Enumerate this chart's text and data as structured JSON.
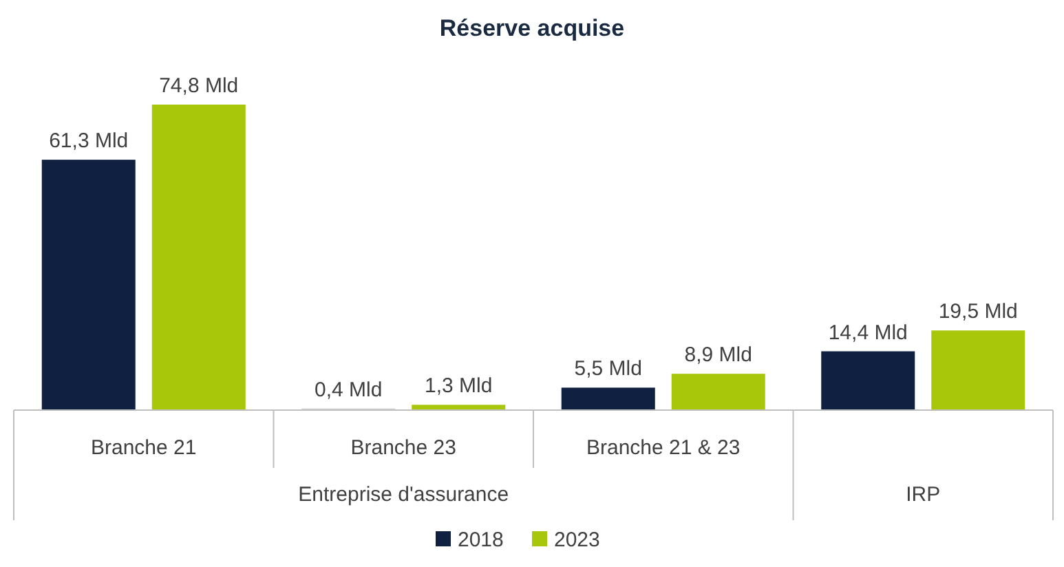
{
  "chart_data": {
    "type": "bar",
    "title": "Réserve acquise",
    "categories": [
      "Branche 21",
      "Branche 23",
      "Branche 21 & 23",
      null
    ],
    "series": [
      {
        "name": "2018",
        "color": "#0f2040",
        "colors": [
          "#0f2040",
          "#d3d3d3",
          "#0f2040",
          "#0f2040"
        ],
        "values": [
          61.3,
          0.4,
          5.5,
          14.4
        ],
        "value_labels": [
          "61,3 Mld",
          "0,4 Mld",
          "5,5 Mld",
          "14,4 Mld"
        ]
      },
      {
        "name": "2023",
        "color": "#a9c70a",
        "values": [
          74.8,
          1.3,
          8.9,
          19.5
        ],
        "value_labels": [
          "74,8 Mld",
          "1,3 Mld",
          "8,9 Mld",
          "19,5 Mld"
        ]
      }
    ],
    "annotations": [
      "Entreprise d'assurance",
      "IRP"
    ],
    "relative": false,
    "legend": "bottom",
    "grid": false
  }
}
